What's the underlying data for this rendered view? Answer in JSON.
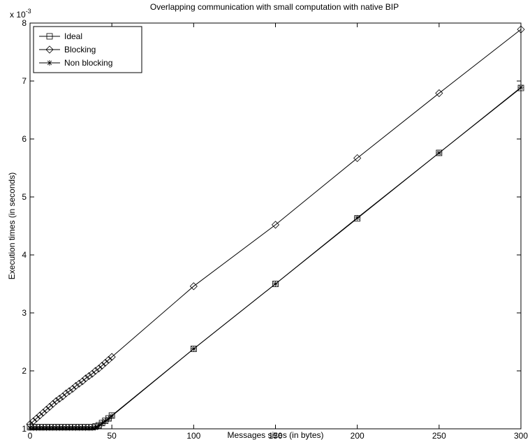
{
  "chart_data": {
    "type": "line",
    "title": "Overlapping communication with small computation with native BIP",
    "xlabel": "Messages sizes (in bytes)",
    "ylabel": "Execution times (in seconds)",
    "y_exponent_label": "x 10",
    "y_exponent_power": "-3",
    "xlim": [
      0,
      300
    ],
    "ylim": [
      1,
      8
    ],
    "y_scale_factor": 0.001,
    "xticks": [
      0,
      50,
      100,
      150,
      200,
      250,
      300
    ],
    "yticks": [
      1,
      2,
      3,
      4,
      5,
      6,
      7,
      8
    ],
    "xtick_labels": [
      "0",
      "50",
      "100",
      "150",
      "200",
      "250",
      "300"
    ],
    "ytick_labels": [
      "1",
      "2",
      "3",
      "4",
      "5",
      "6",
      "7",
      "8"
    ],
    "grid": false,
    "legend_position": "top-left",
    "series": [
      {
        "name": "Ideal",
        "marker": "square",
        "x": [
          0,
          2,
          4,
          6,
          8,
          10,
          12,
          14,
          16,
          18,
          20,
          22,
          24,
          26,
          28,
          30,
          32,
          34,
          36,
          38,
          40,
          42,
          44,
          46,
          48,
          50,
          100,
          150,
          200,
          250,
          300
        ],
        "y": [
          1.03,
          1.03,
          1.03,
          1.03,
          1.03,
          1.03,
          1.03,
          1.03,
          1.03,
          1.03,
          1.03,
          1.03,
          1.03,
          1.03,
          1.03,
          1.03,
          1.03,
          1.03,
          1.03,
          1.03,
          1.04,
          1.06,
          1.1,
          1.14,
          1.18,
          1.23,
          2.38,
          3.5,
          4.63,
          5.76,
          6.88
        ]
      },
      {
        "name": "Blocking",
        "marker": "diamond",
        "x": [
          0,
          2,
          4,
          6,
          8,
          10,
          12,
          14,
          16,
          18,
          20,
          22,
          24,
          26,
          28,
          30,
          32,
          34,
          36,
          38,
          40,
          42,
          44,
          46,
          48,
          50,
          100,
          150,
          200,
          250,
          300
        ],
        "y": [
          1.08,
          1.13,
          1.18,
          1.23,
          1.28,
          1.33,
          1.38,
          1.43,
          1.48,
          1.52,
          1.56,
          1.61,
          1.65,
          1.69,
          1.74,
          1.78,
          1.82,
          1.87,
          1.91,
          1.95,
          2.0,
          2.04,
          2.09,
          2.14,
          2.19,
          2.24,
          3.46,
          4.52,
          5.67,
          6.79,
          7.89
        ]
      },
      {
        "name": "Non blocking",
        "marker": "asterisk",
        "x": [
          0,
          2,
          4,
          6,
          8,
          10,
          12,
          14,
          16,
          18,
          20,
          22,
          24,
          26,
          28,
          30,
          32,
          34,
          36,
          38,
          40,
          42,
          44,
          46,
          48,
          50,
          100,
          150,
          200,
          250,
          300
        ],
        "y": [
          1.01,
          1.01,
          1.01,
          1.01,
          1.01,
          1.01,
          1.01,
          1.01,
          1.01,
          1.01,
          1.01,
          1.01,
          1.01,
          1.01,
          1.01,
          1.01,
          1.01,
          1.01,
          1.01,
          1.01,
          1.02,
          1.05,
          1.09,
          1.13,
          1.17,
          1.22,
          2.38,
          3.5,
          4.64,
          5.76,
          6.89
        ]
      }
    ]
  }
}
